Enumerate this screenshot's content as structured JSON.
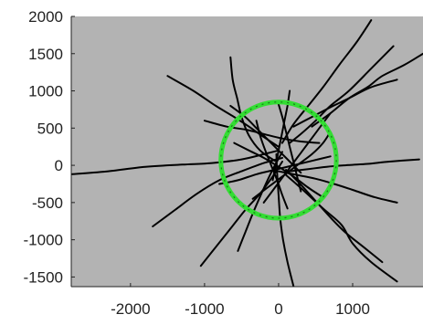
{
  "chart_data": {
    "type": "line",
    "title": "",
    "xlabel": "",
    "ylabel": "",
    "xlim": [
      -2800,
      1950
    ],
    "ylim": [
      -1630,
      2000
    ],
    "x_ticks": [
      {
        "value": -2000,
        "label": "-2000"
      },
      {
        "value": -1000,
        "label": "-1000"
      },
      {
        "value": 0,
        "label": "0"
      },
      {
        "value": 1000,
        "label": "1000"
      }
    ],
    "y_ticks": [
      {
        "value": 2000,
        "label": "2000"
      },
      {
        "value": 1500,
        "label": "1500"
      },
      {
        "value": 1000,
        "label": "1000"
      },
      {
        "value": 500,
        "label": "500"
      },
      {
        "value": 0,
        "label": "0"
      },
      {
        "value": -500,
        "label": "-500"
      },
      {
        "value": -1000,
        "label": "-1000"
      },
      {
        "value": -1500,
        "label": "-1500"
      }
    ],
    "grid": false,
    "legend": "none",
    "colors": {
      "background": "#b3b3b3",
      "trajectory": "#000000",
      "ring": "#33dd33"
    },
    "ring": {
      "center": [
        0,
        70
      ],
      "radius": 780
    },
    "series": [
      {
        "points": [
          [
            -2800,
            -120
          ],
          [
            -2300,
            -80
          ],
          [
            -1800,
            -20
          ],
          [
            -1300,
            10
          ],
          [
            -900,
            30
          ],
          [
            -500,
            80
          ],
          [
            -200,
            150
          ],
          [
            0,
            200
          ]
        ]
      },
      {
        "points": [
          [
            -1700,
            -820
          ],
          [
            -1400,
            -600
          ],
          [
            -1100,
            -380
          ],
          [
            -800,
            -200
          ],
          [
            -500,
            -80
          ],
          [
            -200,
            30
          ],
          [
            50,
            100
          ]
        ]
      },
      {
        "points": [
          [
            -1500,
            1200
          ],
          [
            -1150,
            1000
          ],
          [
            -850,
            800
          ],
          [
            -600,
            650
          ],
          [
            -400,
            520
          ],
          [
            -200,
            380
          ],
          [
            0,
            250
          ]
        ]
      },
      {
        "points": [
          [
            -1000,
            600
          ],
          [
            -700,
            520
          ],
          [
            -450,
            480
          ],
          [
            -200,
            420
          ],
          [
            50,
            360
          ],
          [
            300,
            320
          ],
          [
            550,
            300
          ]
        ]
      },
      {
        "points": [
          [
            -650,
            1450
          ],
          [
            -620,
            1150
          ],
          [
            -560,
            900
          ],
          [
            -500,
            650
          ],
          [
            -400,
            400
          ],
          [
            -250,
            200
          ],
          [
            -50,
            60
          ]
        ]
      },
      {
        "points": [
          [
            1250,
            1950
          ],
          [
            1050,
            1650
          ],
          [
            820,
            1350
          ],
          [
            600,
            1050
          ],
          [
            400,
            800
          ],
          [
            200,
            550
          ],
          [
            50,
            300
          ]
        ]
      },
      {
        "points": [
          [
            1550,
            1600
          ],
          [
            1250,
            1300
          ],
          [
            950,
            1000
          ],
          [
            700,
            800
          ],
          [
            500,
            600
          ],
          [
            300,
            420
          ],
          [
            150,
            300
          ]
        ]
      },
      {
        "points": [
          [
            1600,
            1150
          ],
          [
            1250,
            1050
          ],
          [
            950,
            900
          ],
          [
            700,
            780
          ],
          [
            450,
            650
          ],
          [
            200,
            520
          ]
        ]
      },
      {
        "points": [
          [
            1950,
            1500
          ],
          [
            1700,
            1350
          ],
          [
            1400,
            1200
          ],
          [
            1200,
            1050
          ],
          [
            950,
            900
          ],
          [
            700,
            700
          ],
          [
            450,
            520
          ]
        ]
      },
      {
        "points": [
          [
            1900,
            80
          ],
          [
            1500,
            50
          ],
          [
            1200,
            20
          ],
          [
            900,
            0
          ],
          [
            650,
            -20
          ],
          [
            400,
            -50
          ],
          [
            150,
            -80
          ]
        ]
      },
      {
        "points": [
          [
            1600,
            -500
          ],
          [
            1300,
            -430
          ],
          [
            1000,
            -330
          ],
          [
            750,
            -250
          ],
          [
            500,
            -180
          ],
          [
            250,
            -130
          ],
          [
            0,
            -80
          ]
        ]
      },
      {
        "points": [
          [
            1400,
            -1300
          ],
          [
            1150,
            -1100
          ],
          [
            900,
            -900
          ],
          [
            700,
            -700
          ],
          [
            500,
            -480
          ],
          [
            300,
            -260
          ],
          [
            100,
            -60
          ]
        ]
      },
      {
        "points": [
          [
            1600,
            -1560
          ],
          [
            1250,
            -1300
          ],
          [
            1000,
            -1050
          ],
          [
            850,
            -800
          ],
          [
            600,
            -580
          ],
          [
            350,
            -350
          ],
          [
            100,
            -130
          ]
        ]
      },
      {
        "points": [
          [
            200,
            -1620
          ],
          [
            120,
            -1300
          ],
          [
            60,
            -1000
          ],
          [
            20,
            -700
          ],
          [
            0,
            -400
          ],
          [
            -20,
            -100
          ],
          [
            -30,
            150
          ]
        ]
      },
      {
        "points": [
          [
            -1050,
            -1350
          ],
          [
            -850,
            -1100
          ],
          [
            -650,
            -850
          ],
          [
            -450,
            -600
          ],
          [
            -250,
            -380
          ],
          [
            -80,
            -150
          ],
          [
            50,
            50
          ]
        ]
      },
      {
        "points": [
          [
            -550,
            -1150
          ],
          [
            -450,
            -900
          ],
          [
            -350,
            -650
          ],
          [
            -250,
            -420
          ],
          [
            -150,
            -200
          ],
          [
            -50,
            0
          ],
          [
            50,
            180
          ]
        ]
      },
      {
        "points": [
          [
            150,
            1000
          ],
          [
            120,
            800
          ],
          [
            80,
            600
          ],
          [
            40,
            400
          ],
          [
            0,
            200
          ],
          [
            -40,
            0
          ],
          [
            -80,
            -200
          ]
        ]
      },
      {
        "points": [
          [
            -800,
            -250
          ],
          [
            -550,
            -200
          ],
          [
            -300,
            -120
          ],
          [
            -50,
            -60
          ],
          [
            200,
            0
          ],
          [
            450,
            60
          ],
          [
            700,
            120
          ]
        ]
      },
      {
        "points": [
          [
            -300,
            600
          ],
          [
            -250,
            400
          ],
          [
            -180,
            200
          ],
          [
            -100,
            0
          ],
          [
            -20,
            -200
          ],
          [
            50,
            -400
          ],
          [
            120,
            -580
          ]
        ]
      },
      {
        "points": [
          [
            700,
            700
          ],
          [
            550,
            500
          ],
          [
            400,
            300
          ],
          [
            250,
            100
          ],
          [
            100,
            -100
          ],
          [
            -50,
            -300
          ],
          [
            -200,
            -500
          ]
        ]
      },
      {
        "points": [
          [
            -600,
            300
          ],
          [
            -400,
            200
          ],
          [
            -200,
            100
          ],
          [
            0,
            -20
          ],
          [
            200,
            -150
          ],
          [
            400,
            -300
          ],
          [
            600,
            -430
          ]
        ]
      },
      {
        "points": [
          [
            -350,
            -450
          ],
          [
            -150,
            -300
          ],
          [
            50,
            -150
          ],
          [
            250,
            0
          ],
          [
            450,
            150
          ],
          [
            600,
            300
          ],
          [
            700,
            450
          ]
        ]
      },
      {
        "points": [
          [
            300,
            -350
          ],
          [
            250,
            -150
          ],
          [
            200,
            50
          ],
          [
            150,
            250
          ],
          [
            100,
            450
          ],
          [
            50,
            650
          ],
          [
            0,
            820
          ]
        ]
      },
      {
        "points": [
          [
            -650,
            800
          ],
          [
            -450,
            650
          ],
          [
            -300,
            500
          ],
          [
            -150,
            350
          ],
          [
            0,
            200
          ],
          [
            150,
            50
          ],
          [
            300,
            -100
          ]
        ]
      }
    ]
  }
}
